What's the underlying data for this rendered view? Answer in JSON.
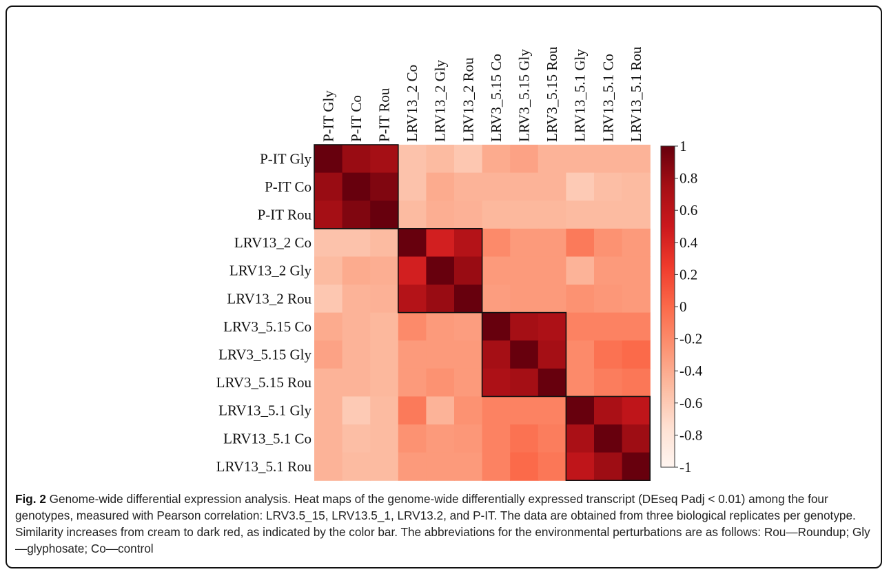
{
  "chart_data": {
    "type": "heatmap",
    "labels": [
      "P-IT Gly",
      "P-IT Co",
      "P-IT Rou",
      "LRV13_2 Co",
      "LRV13_2 Gly",
      "LRV13_2 Rou",
      "LRV3_5.15 Co",
      "LRV3_5.15 Gly",
      "LRV3_5.15 Rou",
      "LRV13_5.1 Gly",
      "LRV13_5.1 Co",
      "LRV13_5.1 Rou"
    ],
    "colorbar": {
      "min": -1,
      "max": 1,
      "ticks": [
        "1",
        "0.8",
        "0.6",
        "0.4",
        "0.2",
        "0",
        "-0.2",
        "-0.4",
        "-0.6",
        "-0.8",
        "-1"
      ],
      "colors": [
        "#fff5f0",
        "#fee0d2",
        "#fcbba1",
        "#fc9272",
        "#fb6a4a",
        "#ef3b2c",
        "#cb181d",
        "#a50f15",
        "#67000d"
      ]
    },
    "values": [
      [
        1.0,
        0.8,
        0.75,
        -0.55,
        -0.5,
        -0.58,
        -0.4,
        -0.35,
        -0.45,
        -0.45,
        -0.45,
        -0.45
      ],
      [
        0.8,
        1.0,
        0.9,
        -0.55,
        -0.4,
        -0.45,
        -0.45,
        -0.45,
        -0.45,
        -0.6,
        -0.52,
        -0.5
      ],
      [
        0.75,
        0.9,
        1.0,
        -0.5,
        -0.42,
        -0.44,
        -0.48,
        -0.48,
        -0.48,
        -0.5,
        -0.5,
        -0.5
      ],
      [
        -0.55,
        -0.55,
        -0.5,
        1.0,
        0.45,
        0.65,
        -0.2,
        -0.3,
        -0.3,
        -0.1,
        -0.25,
        -0.3
      ],
      [
        -0.5,
        -0.4,
        -0.42,
        0.45,
        1.0,
        0.8,
        -0.3,
        -0.3,
        -0.3,
        -0.45,
        -0.3,
        -0.3
      ],
      [
        -0.58,
        -0.45,
        -0.44,
        0.65,
        0.8,
        1.0,
        -0.32,
        -0.3,
        -0.3,
        -0.25,
        -0.28,
        -0.3
      ],
      [
        -0.4,
        -0.45,
        -0.48,
        -0.2,
        -0.3,
        -0.32,
        1.0,
        0.75,
        0.7,
        -0.15,
        -0.15,
        -0.15
      ],
      [
        -0.35,
        -0.45,
        -0.48,
        -0.3,
        -0.3,
        -0.3,
        0.75,
        1.0,
        0.75,
        -0.2,
        -0.05,
        0.0
      ],
      [
        -0.45,
        -0.45,
        -0.48,
        -0.3,
        -0.25,
        -0.3,
        0.7,
        0.75,
        1.0,
        -0.2,
        -0.12,
        -0.08
      ],
      [
        -0.45,
        -0.6,
        -0.5,
        -0.1,
        -0.45,
        -0.25,
        -0.15,
        -0.15,
        -0.15,
        1.0,
        0.72,
        0.58
      ],
      [
        -0.45,
        -0.52,
        -0.5,
        -0.25,
        -0.3,
        -0.28,
        -0.15,
        -0.05,
        -0.12,
        0.72,
        1.0,
        0.78
      ],
      [
        -0.45,
        -0.5,
        -0.5,
        -0.3,
        -0.3,
        -0.3,
        -0.15,
        0.0,
        -0.08,
        0.58,
        0.78,
        1.0
      ]
    ],
    "blocks": [
      [
        0,
        2
      ],
      [
        3,
        5
      ],
      [
        6,
        8
      ],
      [
        9,
        11
      ]
    ]
  },
  "caption": {
    "fig_label": "Fig. 2",
    "text": "Genome-wide differential expression analysis. Heat maps of the genome-wide differentially expressed transcript (DEseq Padj < 0.01) among the four genotypes, measured with Pearson correlation: LRV3.5_15, LRV13.5_1, LRV13.2, and P-IT. The data are obtained from three biological replicates per genotype. Similarity increases from cream to dark red, as indicated by the color bar. The abbreviations for the environmental perturbations are as follows: Rou—Roundup; Gly—glyphosate; Co—control"
  }
}
